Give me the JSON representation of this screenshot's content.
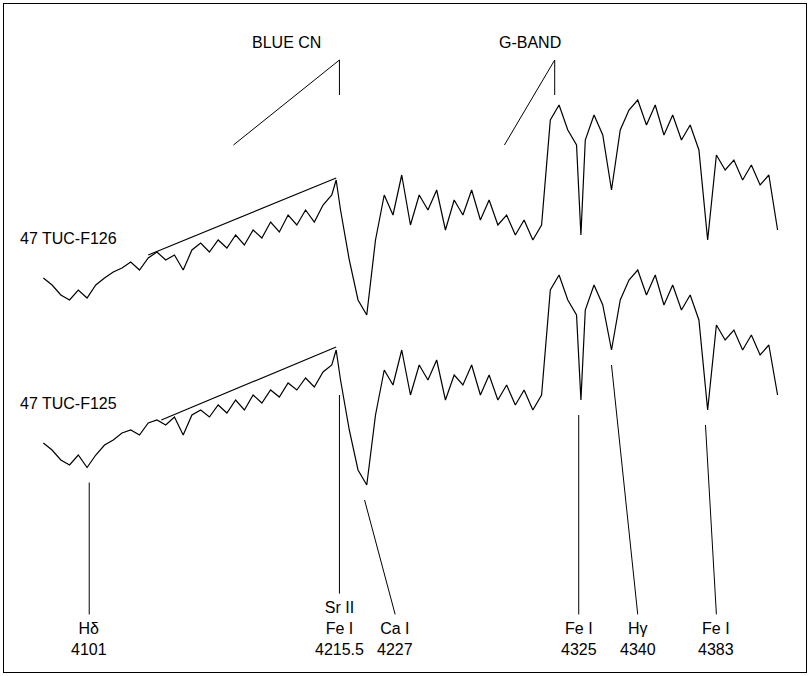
{
  "chart_data": {
    "type": "line",
    "x": [
      4080,
      4084,
      4088,
      4092,
      4096,
      4100,
      4104,
      4108,
      4112,
      4116,
      4120,
      4124,
      4128,
      4132,
      4136,
      4140,
      4144,
      4148,
      4152,
      4156,
      4160,
      4164,
      4168,
      4172,
      4176,
      4180,
      4184,
      4188,
      4192,
      4196,
      4200,
      4204,
      4208,
      4212,
      4214,
      4216,
      4220,
      4224,
      4228,
      4232,
      4236,
      4240,
      4244,
      4248,
      4252,
      4256,
      4260,
      4264,
      4268,
      4272,
      4276,
      4280,
      4284,
      4288,
      4292,
      4296,
      4300,
      4304,
      4308,
      4312,
      4316,
      4320,
      4324,
      4326,
      4328,
      4332,
      4336,
      4340,
      4344,
      4348,
      4352,
      4356,
      4360,
      4364,
      4368,
      4372,
      4376,
      4380,
      4384,
      4388,
      4392,
      4396,
      4400,
      4404,
      4408,
      4412,
      4416
    ],
    "series": [
      {
        "name": "47 TUC-F126",
        "color": "#000000",
        "values": [
          57.4,
          56,
          54,
          53,
          55,
          53.4,
          56,
          57.4,
          58.6,
          59.4,
          60.6,
          59,
          61.4,
          62.6,
          61,
          62,
          59,
          63,
          64.4,
          62.6,
          65,
          63.4,
          66,
          64,
          67,
          65.4,
          68.6,
          66.6,
          70,
          68,
          71,
          68.6,
          72,
          74,
          77,
          71,
          61,
          53,
          50,
          65,
          74,
          70,
          78,
          68,
          74,
          71,
          75,
          67,
          73,
          70,
          75,
          69,
          73,
          68,
          70,
          66,
          69,
          65,
          68,
          89,
          92,
          87,
          84,
          66,
          85,
          90,
          86,
          75,
          87,
          91,
          93,
          88,
          92,
          86,
          90,
          85,
          88,
          83,
          65,
          82,
          79,
          81,
          77,
          80,
          76,
          78,
          67
        ]
      },
      {
        "name": "47 TUC-F125",
        "color": "#000000",
        "values": [
          24.4,
          23,
          21,
          20,
          22,
          19.5,
          22,
          24,
          25,
          26.4,
          27,
          26,
          28.4,
          29,
          28,
          29.6,
          26,
          30,
          31,
          29.6,
          32,
          30.4,
          33,
          31,
          34,
          32.4,
          35,
          33.6,
          36.4,
          35,
          37.4,
          35.6,
          38.6,
          40,
          43,
          37,
          27,
          19,
          16,
          30,
          39,
          36,
          43,
          34,
          40,
          37,
          41,
          33,
          38,
          36,
          40,
          34,
          38,
          33,
          36,
          32,
          35,
          31,
          34,
          55,
          58,
          53,
          50,
          33,
          51,
          56,
          52,
          43,
          53,
          57,
          59,
          54,
          58,
          52,
          56,
          51,
          54,
          49,
          31,
          48,
          45,
          47,
          43,
          46,
          42,
          44,
          34
        ]
      }
    ],
    "xlim": [
      4062,
      4429
    ],
    "ylim": [
      -21.4,
      112.2
    ],
    "xticks": [],
    "yticks": [],
    "tick_labels": false,
    "grid": false,
    "continuum_lines": [
      {
        "x": [
          4128,
          4214
        ],
        "values": [
          62,
          77.4
        ]
      },
      {
        "x": [
          4134,
          4214
        ],
        "values": [
          29,
          43.6
        ]
      }
    ],
    "bands": [
      {
        "label": "BLUE CN",
        "x": [
          4167,
          4215.5
        ]
      },
      {
        "label": "G-BAND",
        "x": [
          4291,
          4314
        ]
      }
    ],
    "line_ids": [
      {
        "labels": [
          "Hδ"
        ],
        "wavelength": 4101
      },
      {
        "labels": [
          "Sr II",
          "Fe I"
        ],
        "wavelength": 4215.5
      },
      {
        "labels": [
          "Ca I"
        ],
        "wavelength": 4227
      },
      {
        "labels": [
          "Fe I"
        ],
        "wavelength": 4325
      },
      {
        "labels": [
          "Hγ"
        ],
        "wavelength": 4340
      },
      {
        "labels": [
          "Fe I"
        ],
        "wavelength": 4383
      }
    ]
  }
}
